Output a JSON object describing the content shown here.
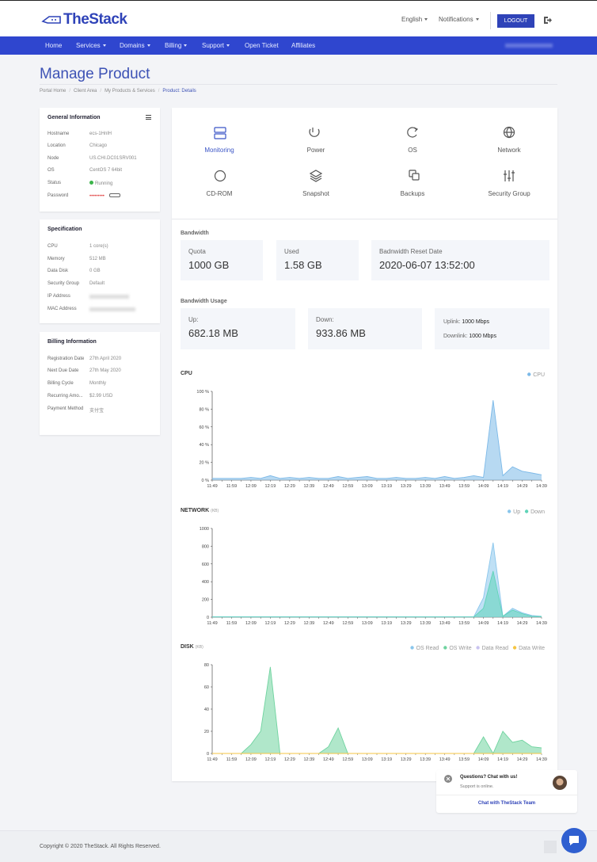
{
  "header": {
    "brand": "TheStack",
    "language": "English",
    "notifications": "Notifications",
    "logout": "LOGOUT"
  },
  "nav": {
    "items": [
      "Home",
      "Services",
      "Domains",
      "Billing",
      "Support",
      "Open Ticket",
      "Affiliates"
    ]
  },
  "page": {
    "title": "Manage Product",
    "breadcrumbs": [
      "Portal Home",
      "Client Area",
      "My Products & Services",
      "Product: Details"
    ]
  },
  "general": {
    "title": "General Information",
    "rows": [
      {
        "label": "Hostname",
        "value": "ecs-1HnlH"
      },
      {
        "label": "Location",
        "value": "Chicago"
      },
      {
        "label": "Node",
        "value": "US.CHI.DC01SRV001"
      },
      {
        "label": "OS",
        "value": "CentOS 7 64bit"
      },
      {
        "label": "Status",
        "value": "Running"
      },
      {
        "label": "Password",
        "value": "•••••••••"
      }
    ]
  },
  "specification": {
    "title": "Specification",
    "rows": [
      {
        "label": "CPU",
        "value": "1 core(s)"
      },
      {
        "label": "Memory",
        "value": "512 MB"
      },
      {
        "label": "Data Disk",
        "value": "0 GB"
      },
      {
        "label": "Security Group",
        "value": "Default"
      },
      {
        "label": "IP Address"
      },
      {
        "label": "MAC Address"
      }
    ]
  },
  "billing": {
    "title": "Billing Information",
    "rows": [
      {
        "label": "Registration Date",
        "value": "27th April 2020"
      },
      {
        "label": "Next Due Date",
        "value": "27th May 2020"
      },
      {
        "label": "Billing Cycle",
        "value": "Monthly"
      },
      {
        "label": "Recurring Amo...",
        "value": "$2.99 USD"
      },
      {
        "label": "Payment Method",
        "value": "支付宝"
      }
    ]
  },
  "tabs": [
    "Monitoring",
    "Power",
    "OS",
    "Network",
    "CD-ROM",
    "Snapshot",
    "Backups",
    "Security Group"
  ],
  "bandwidth": {
    "title": "Bandwidth",
    "cards": [
      {
        "label": "Quota",
        "value": "1000 GB"
      },
      {
        "label": "Used",
        "value": "1.58 GB"
      },
      {
        "label": "Badnwidth Reset Date",
        "value": "2020-06-07 13:52:00"
      }
    ]
  },
  "usage": {
    "title": "Bandwidth Usage",
    "up": {
      "label": "Up:",
      "value": "682.18 MB"
    },
    "down": {
      "label": "Down:",
      "value": "933.86 MB"
    },
    "uplink": {
      "label": "Uplink:",
      "value": "1000 Mbps"
    },
    "downlink": {
      "label": "Downlink:",
      "value": "1000 Mbps"
    }
  },
  "chart_data": [
    {
      "type": "area",
      "title": "CPU",
      "categories": [
        "11:49",
        null,
        "11:59",
        null,
        "12:09",
        null,
        "12:19",
        null,
        "12:29",
        null,
        "12:39",
        null,
        "12:49",
        null,
        "12:59",
        null,
        "13:09",
        null,
        "13:19",
        null,
        "13:29",
        null,
        "13:39",
        null,
        "13:49",
        null,
        "13:59",
        null,
        "14:09",
        null,
        "14:19",
        null,
        "14:29",
        null,
        "14:39"
      ],
      "series": [
        {
          "name": "CPU",
          "color": "#7cb9e8",
          "values": [
            2,
            2,
            2,
            2,
            3,
            2,
            5,
            2,
            3,
            2,
            3,
            2,
            2,
            4,
            2,
            3,
            4,
            2,
            2,
            3,
            2,
            2,
            3,
            2,
            4,
            2,
            3,
            5,
            3,
            90,
            5,
            15,
            10,
            8,
            6
          ]
        }
      ],
      "ylim": [
        0,
        100
      ],
      "yticks": [
        {
          "value": 0,
          "label": "0 %"
        },
        {
          "value": 20,
          "label": "20 %"
        },
        {
          "value": 40,
          "label": "40 %"
        },
        {
          "value": 60,
          "label": "60 %"
        },
        {
          "value": 80,
          "label": "80 %"
        },
        {
          "value": 100,
          "label": "100 %"
        }
      ]
    },
    {
      "type": "area",
      "title": "NETWORK",
      "unit": "(KB)",
      "categories": [
        "11:49",
        null,
        "11:59",
        null,
        "12:09",
        null,
        "12:19",
        null,
        "12:29",
        null,
        "12:39",
        null,
        "12:49",
        null,
        "12:59",
        null,
        "13:09",
        null,
        "13:19",
        null,
        "13:29",
        null,
        "13:39",
        null,
        "13:49",
        null,
        "13:59",
        null,
        "14:09",
        null,
        "14:19",
        null,
        "14:29",
        null,
        "14:39"
      ],
      "series": [
        {
          "name": "Up",
          "color": "#8ac6ec",
          "values": [
            5,
            5,
            5,
            5,
            5,
            5,
            5,
            5,
            5,
            5,
            5,
            5,
            5,
            5,
            5,
            5,
            5,
            5,
            5,
            5,
            5,
            5,
            5,
            5,
            5,
            5,
            5,
            5,
            220,
            840,
            10,
            100,
            50,
            20,
            10
          ]
        },
        {
          "name": "Down",
          "color": "#5fd3b8",
          "values": [
            3,
            3,
            3,
            3,
            3,
            3,
            3,
            3,
            3,
            3,
            3,
            3,
            3,
            3,
            3,
            3,
            3,
            3,
            3,
            3,
            3,
            3,
            3,
            3,
            3,
            3,
            3,
            3,
            100,
            520,
            10,
            80,
            40,
            10,
            8
          ]
        }
      ],
      "ylim": [
        0,
        1000
      ],
      "yticks": [
        0,
        200,
        400,
        600,
        800,
        1000
      ]
    },
    {
      "type": "area",
      "title": "DISK",
      "unit": "(KB)",
      "categories": [
        "11:49",
        null,
        "11:59",
        null,
        "12:09",
        null,
        "12:19",
        null,
        "12:29",
        null,
        "12:39",
        null,
        "12:49",
        null,
        "12:59",
        null,
        "13:09",
        null,
        "13:19",
        null,
        "13:29",
        null,
        "13:39",
        null,
        "13:49",
        null,
        "13:59",
        null,
        "14:09",
        null,
        "14:19",
        null,
        "14:29",
        null,
        "14:39"
      ],
      "series": [
        {
          "name": "OS Read",
          "color": "#8ac6ec",
          "values": [
            0,
            0,
            0,
            0,
            0,
            0,
            0,
            0,
            0,
            0,
            0,
            0,
            0,
            0,
            0,
            0,
            0,
            0,
            0,
            0,
            0,
            0,
            0,
            0,
            0,
            0,
            0,
            0,
            0,
            0,
            0,
            0,
            0,
            0,
            0
          ]
        },
        {
          "name": "OS Write",
          "color": "#6fd39f",
          "values": [
            0,
            0,
            0,
            0,
            8,
            20,
            78,
            0,
            0,
            0,
            0,
            0,
            6,
            23,
            0,
            0,
            0,
            0,
            0,
            0,
            0,
            0,
            0,
            0,
            0,
            0,
            0,
            0,
            15,
            0,
            20,
            10,
            12,
            6,
            5
          ]
        },
        {
          "name": "Data Read",
          "color": "#c9c3f0",
          "values": [
            0,
            0,
            0,
            0,
            0,
            0,
            0,
            0,
            0,
            0,
            0,
            0,
            0,
            0,
            0,
            0,
            0,
            0,
            0,
            0,
            0,
            0,
            0,
            0,
            0,
            0,
            0,
            0,
            0,
            0,
            0,
            0,
            0,
            0,
            0
          ]
        },
        {
          "name": "Data Write",
          "color": "#f5c542",
          "values": [
            0,
            0,
            0,
            0,
            0,
            0,
            0,
            0,
            0,
            0,
            0,
            0,
            0,
            0,
            0,
            0,
            0,
            0,
            0,
            0,
            0,
            0,
            0,
            0,
            0,
            0,
            0,
            0,
            0,
            0,
            0,
            0,
            0,
            0,
            0
          ]
        }
      ],
      "ylim": [
        0,
        80
      ],
      "yticks": [
        0,
        20,
        40,
        60,
        80
      ]
    }
  ],
  "chat": {
    "title": "Questions? Chat with us!",
    "status": "Support is online.",
    "action": "Chat with TheStack Team"
  },
  "footer": {
    "copyright": "Copyright © 2020 TheStack. All Rights Reserved."
  }
}
